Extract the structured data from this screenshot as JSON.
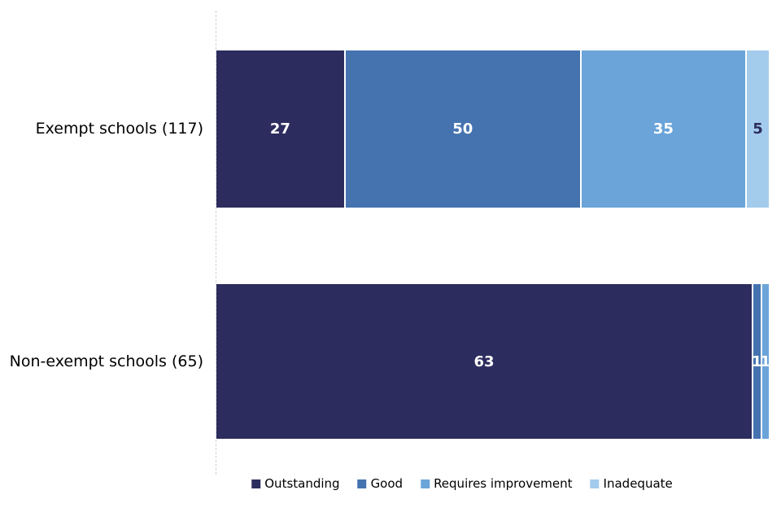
{
  "chart_data": {
    "type": "bar",
    "orientation": "horizontal",
    "stacked": true,
    "normalized": "each bar spans full plot width; segment widths proportional to value/category total",
    "title": "",
    "xlabel": "",
    "ylabel": "",
    "categories": [
      "Exempt schools (117)",
      "Non-exempt schools (65)"
    ],
    "category_totals": [
      117,
      65
    ],
    "series": [
      {
        "name": "Outstanding",
        "color": "#2D2C5E",
        "label_color": "#FFFFFF",
        "values": [
          27,
          63
        ]
      },
      {
        "name": "Good",
        "color": "#4473B0",
        "label_color": "#FFFFFF",
        "values": [
          50,
          1
        ]
      },
      {
        "name": "Requires improvement",
        "color": "#6AA4D9",
        "label_color": "#FFFFFF",
        "values": [
          35,
          1
        ]
      },
      {
        "name": "Inadequate",
        "color": "#A3CBEC",
        "label_color": "#2D2C5E",
        "values": [
          5,
          0
        ]
      }
    ],
    "data_labels_shown": true,
    "legend_position": "bottom",
    "grid": false,
    "axis_line_color": "#D2D2D2",
    "background_color": "#FFFFFF",
    "segment_separator_color": "#FFFFFF"
  }
}
